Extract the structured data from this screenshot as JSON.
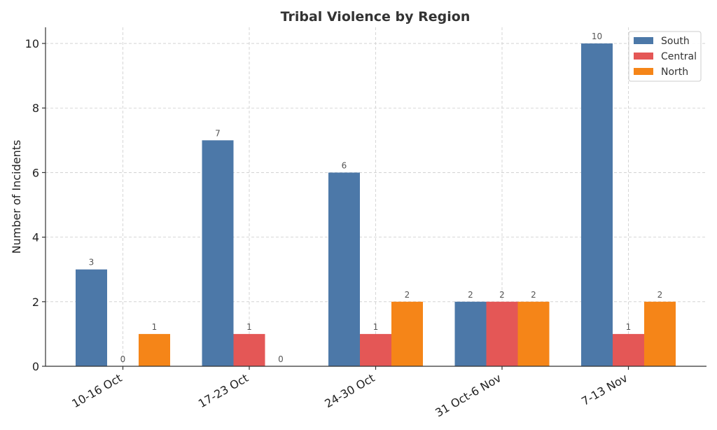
{
  "chart_data": {
    "type": "bar",
    "title": "Tribal Violence by Region",
    "xlabel": "",
    "ylabel": "Number of Incidents",
    "categories": [
      "10-16 Oct",
      "17-23 Oct",
      "24-30 Oct",
      "31 Oct-6 Nov",
      "7-13 Nov"
    ],
    "series": [
      {
        "name": "South",
        "color": "#4c78a8",
        "values": [
          3,
          7,
          6,
          2,
          10
        ]
      },
      {
        "name": "Central",
        "color": "#e45756",
        "values": [
          0,
          1,
          1,
          2,
          1
        ]
      },
      {
        "name": "North",
        "color": "#f58518",
        "values": [
          1,
          0,
          2,
          2,
          2
        ]
      }
    ],
    "ylim": [
      0,
      10.5
    ],
    "yticks": [
      0,
      2,
      4,
      6,
      8,
      10
    ],
    "grid": true,
    "legend": "top-right",
    "data_labels": true
  }
}
